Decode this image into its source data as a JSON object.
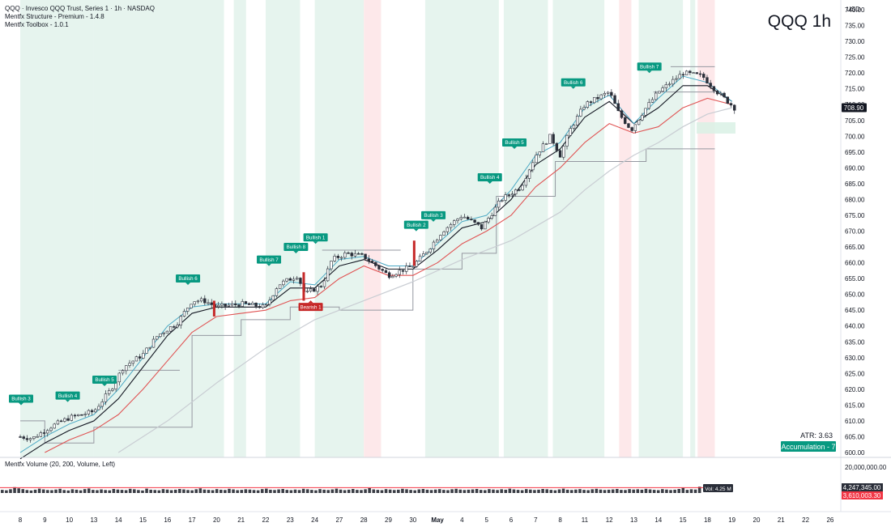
{
  "header": {
    "title_line": "QQQ · Invesco QQQ Trust, Series 1 · 1h · NASDAQ",
    "indicator_1": "Mentfx Structure - Premium - 1.4.8",
    "indicator_2": "Mentfx Toolbox - 1.0.1",
    "watermark": "QQQ 1h"
  },
  "price_axis": {
    "currency": "USD",
    "ticks": [
      "740.00",
      "735.00",
      "730.00",
      "725.00",
      "720.00",
      "715.00",
      "710.00",
      "705.00",
      "700.00",
      "695.00",
      "690.00",
      "685.00",
      "680.00",
      "675.00",
      "670.00",
      "665.00",
      "660.00",
      "655.00",
      "650.00",
      "645.00",
      "640.00",
      "635.00",
      "630.00",
      "625.00",
      "620.00",
      "615.00",
      "610.00",
      "605.00",
      "600.00"
    ],
    "last_price": "708.90",
    "last_price_color": "#131722"
  },
  "status": {
    "atr": "ATR: 3.63",
    "accumulation": "Accumulation - 7",
    "accumulation_color": "#089981"
  },
  "volume_panel": {
    "title": "Mentfx Volume (20, 200, Volume, Left)",
    "axis_top": "20,000,000.00",
    "last_volume": "4,247,345.00",
    "volume_ma": "3,610,003.30",
    "vol_readout": "Vol: 4.25 M",
    "ma_color": "#f23645"
  },
  "time_axis": {
    "labels": [
      "8",
      "9",
      "10",
      "13",
      "14",
      "15",
      "16",
      "17",
      "20",
      "21",
      "22",
      "23",
      "24",
      "27",
      "28",
      "29",
      "30",
      "May",
      "4",
      "5",
      "6",
      "7",
      "8",
      "11",
      "12",
      "13",
      "14",
      "15",
      "18",
      "19",
      "20",
      "21",
      "22",
      "26"
    ]
  },
  "colors": {
    "bull_zone": "#e6f4ee",
    "bear_zone": "#fde8ea",
    "bullish_label": "#089981",
    "bearish_label": "#c62828",
    "candle_up_fill": "#ffffff",
    "candle_down_fill": "#2a2e39",
    "ema_fast": "#4aa8c4",
    "ema_mid": "#131722",
    "ema_slow": "#e05353",
    "sma_long": "#c9cdd3",
    "structure": "#9598a1"
  },
  "chart_data": {
    "type": "candlestick",
    "title": "QQQ 1h",
    "ylabel": "USD",
    "ylim": [
      600,
      740
    ],
    "x_categories": [
      "8",
      "9",
      "10",
      "13",
      "14",
      "15",
      "16",
      "17",
      "20",
      "21",
      "22",
      "23",
      "24",
      "27",
      "28",
      "29",
      "30",
      "May",
      "4",
      "5",
      "6",
      "7",
      "8",
      "11",
      "12",
      "13",
      "14",
      "15",
      "18",
      "19",
      "20",
      "21",
      "22",
      "26"
    ],
    "close_path": [
      [
        0,
        605
      ],
      [
        0.5,
        604.5
      ],
      [
        1.2,
        608
      ],
      [
        2,
        611
      ],
      [
        3,
        613
      ],
      [
        3.7,
        620
      ],
      [
        4.2,
        627
      ],
      [
        5,
        631
      ],
      [
        5.6,
        637
      ],
      [
        6.4,
        641
      ],
      [
        7,
        648
      ],
      [
        7.5,
        648
      ],
      [
        8,
        646
      ],
      [
        9,
        647
      ],
      [
        10,
        646
      ],
      [
        10.5,
        653
      ],
      [
        11.3,
        656
      ],
      [
        11.6,
        650
      ],
      [
        12.3,
        653
      ],
      [
        12.7,
        661
      ],
      [
        13.3,
        663
      ],
      [
        14,
        662
      ],
      [
        15,
        656
      ],
      [
        16,
        659
      ],
      [
        16.6,
        664
      ],
      [
        17.2,
        670
      ],
      [
        18,
        675
      ],
      [
        18.8,
        671
      ],
      [
        19.6,
        680
      ],
      [
        20.4,
        684
      ],
      [
        21,
        694
      ],
      [
        21.6,
        700
      ],
      [
        22,
        694
      ],
      [
        22.4,
        702
      ],
      [
        23,
        710
      ],
      [
        24,
        714
      ],
      [
        24.4,
        707
      ],
      [
        24.9,
        702
      ],
      [
        25.4,
        708
      ],
      [
        26,
        714
      ],
      [
        27,
        720
      ],
      [
        27.8,
        719
      ],
      [
        28.4,
        714
      ],
      [
        29.1,
        709
      ]
    ],
    "ema_fast_path": [
      [
        0,
        600
      ],
      [
        1,
        605
      ],
      [
        2,
        609
      ],
      [
        3,
        612
      ],
      [
        4,
        620
      ],
      [
        5,
        630
      ],
      [
        6,
        640
      ],
      [
        7,
        646
      ],
      [
        8,
        647
      ],
      [
        9,
        647
      ],
      [
        10,
        647
      ],
      [
        11,
        654
      ],
      [
        12,
        653
      ],
      [
        13,
        661
      ],
      [
        14,
        662
      ],
      [
        15,
        659
      ],
      [
        16,
        659
      ],
      [
        17,
        666
      ],
      [
        18,
        673
      ],
      [
        19,
        675
      ],
      [
        20,
        683
      ],
      [
        21,
        694
      ],
      [
        22,
        698
      ],
      [
        23,
        709
      ],
      [
        24,
        713
      ],
      [
        25,
        704
      ],
      [
        26,
        712
      ],
      [
        27,
        719
      ],
      [
        28,
        717
      ],
      [
        29,
        711
      ]
    ],
    "ema_mid_path": [
      [
        0,
        598
      ],
      [
        1,
        603
      ],
      [
        2,
        607
      ],
      [
        3,
        610
      ],
      [
        4,
        617
      ],
      [
        5,
        627
      ],
      [
        6,
        637
      ],
      [
        7,
        644
      ],
      [
        8,
        646
      ],
      [
        9,
        646
      ],
      [
        10,
        646
      ],
      [
        11,
        652
      ],
      [
        12,
        652
      ],
      [
        13,
        659
      ],
      [
        14,
        661
      ],
      [
        15,
        658
      ],
      [
        16,
        658
      ],
      [
        17,
        664
      ],
      [
        18,
        671
      ],
      [
        19,
        673
      ],
      [
        20,
        680
      ],
      [
        21,
        691
      ],
      [
        22,
        696
      ],
      [
        23,
        706
      ],
      [
        24,
        711
      ],
      [
        25,
        704
      ],
      [
        26,
        709
      ],
      [
        27,
        716
      ],
      [
        28,
        716
      ],
      [
        29,
        711
      ]
    ],
    "ema_slow_path": [
      [
        1,
        600
      ],
      [
        2,
        604
      ],
      [
        3,
        607
      ],
      [
        4,
        612
      ],
      [
        5,
        620
      ],
      [
        6,
        629
      ],
      [
        7,
        638
      ],
      [
        8,
        643
      ],
      [
        9,
        644
      ],
      [
        10,
        645
      ],
      [
        11,
        648
      ],
      [
        12,
        649
      ],
      [
        13,
        655
      ],
      [
        14,
        659
      ],
      [
        15,
        656
      ],
      [
        16,
        656
      ],
      [
        17,
        660
      ],
      [
        18,
        666
      ],
      [
        19,
        670
      ],
      [
        20,
        675
      ],
      [
        21,
        684
      ],
      [
        22,
        690
      ],
      [
        23,
        698
      ],
      [
        24,
        704
      ],
      [
        25,
        701
      ],
      [
        26,
        703
      ],
      [
        27,
        709
      ],
      [
        28,
        712
      ],
      [
        29,
        710
      ]
    ],
    "sma_long_path": [
      [
        4,
        600
      ],
      [
        6,
        610
      ],
      [
        8,
        622
      ],
      [
        10,
        633
      ],
      [
        12,
        642
      ],
      [
        14,
        648
      ],
      [
        16,
        654
      ],
      [
        18,
        661
      ],
      [
        20,
        667
      ],
      [
        22,
        676
      ],
      [
        23,
        683
      ],
      [
        24,
        689
      ],
      [
        25,
        694
      ],
      [
        26,
        698
      ],
      [
        27,
        703
      ],
      [
        28,
        707
      ],
      [
        29,
        709
      ]
    ],
    "bull_zones": [
      [
        0,
        3
      ],
      [
        3,
        8.3
      ],
      [
        8.7,
        9.2
      ],
      [
        10,
        11.4
      ],
      [
        12,
        14
      ],
      [
        16.5,
        19.5
      ],
      [
        19.7,
        21.5
      ],
      [
        21.7,
        23.8
      ],
      [
        25.2,
        27
      ],
      [
        27.3,
        27.5
      ]
    ],
    "bear_zones": [
      [
        14,
        14.7
      ],
      [
        24.4,
        24.9
      ],
      [
        27.6,
        28.3
      ]
    ],
    "structure_steps": [
      [
        0,
        610
      ],
      [
        1,
        610
      ],
      [
        1,
        603
      ],
      [
        3,
        603
      ],
      [
        3,
        608
      ],
      [
        7,
        608
      ],
      [
        7,
        637
      ],
      [
        9,
        637
      ],
      [
        9,
        642
      ],
      [
        11,
        642
      ],
      [
        11,
        646
      ],
      [
        13,
        646
      ],
      [
        13,
        645
      ],
      [
        16,
        645
      ],
      [
        16,
        658
      ],
      [
        18,
        658
      ],
      [
        18,
        663
      ],
      [
        19.4,
        663
      ],
      [
        19.4,
        681
      ],
      [
        21.8,
        681
      ],
      [
        21.8,
        692
      ],
      [
        24.3,
        692
      ],
      [
        24.3,
        692
      ],
      [
        25.5,
        692
      ],
      [
        25.5,
        696
      ],
      [
        28.3,
        696
      ]
    ],
    "supply_lines": [
      [
        [
          4,
          626
        ],
        [
          6.5,
          626
        ]
      ],
      [
        [
          12.3,
          664
        ],
        [
          15.5,
          664
        ]
      ],
      [
        [
          26.5,
          722
        ],
        [
          28.3,
          722
        ]
      ],
      [
        [
          25.8,
          714
        ],
        [
          28.3,
          714
        ]
      ]
    ],
    "annotations": [
      {
        "text": "Bullish 3",
        "x": 0,
        "y": 616,
        "type": "bullish"
      },
      {
        "text": "Bullish 4",
        "x": 1.9,
        "y": 617,
        "type": "bullish"
      },
      {
        "text": "Bullish 5",
        "x": 3.4,
        "y": 622,
        "type": "bullish"
      },
      {
        "text": "Bullish 6",
        "x": 6.8,
        "y": 654,
        "type": "bullish"
      },
      {
        "text": "Bullish 7",
        "x": 10.1,
        "y": 660,
        "type": "bullish"
      },
      {
        "text": "Bullish 8",
        "x": 11.2,
        "y": 664,
        "type": "bullish"
      },
      {
        "text": "Bullish 1",
        "x": 12,
        "y": 667,
        "type": "bullish"
      },
      {
        "text": "Bullish 2",
        "x": 16.1,
        "y": 671,
        "type": "bullish"
      },
      {
        "text": "Bullish 3",
        "x": 16.8,
        "y": 674,
        "type": "bullish"
      },
      {
        "text": "Bullish 4",
        "x": 19.1,
        "y": 686,
        "type": "bullish"
      },
      {
        "text": "Bullish 5",
        "x": 20.1,
        "y": 697,
        "type": "bullish"
      },
      {
        "text": "Bullish 6",
        "x": 22.5,
        "y": 716,
        "type": "bullish"
      },
      {
        "text": "Bullish 7",
        "x": 25.6,
        "y": 721,
        "type": "bullish"
      },
      {
        "text": "Bearish 1",
        "x": 11.8,
        "y": 645,
        "type": "bearish"
      }
    ],
    "volume_ylim": [
      0,
      20000000
    ],
    "volume_values": [
      2.1,
      1.8,
      2.5,
      3.9,
      3.1,
      2.6,
      2.0,
      1.7,
      2.2,
      2.9,
      2.4,
      2.0,
      1.9,
      2.3,
      2.8,
      2.0,
      1.7,
      2.5,
      2.2,
      1.8,
      2.6,
      3.0,
      2.1,
      1.9,
      2.4,
      2.0,
      1.8,
      2.7,
      2.3,
      2.1,
      1.9,
      2.8,
      2.5,
      2.0,
      1.7,
      2.9,
      2.2,
      2.0,
      1.8,
      2.6,
      2.3,
      1.9,
      2.2,
      2.7,
      2.4,
      2.0,
      1.8,
      2.5,
      3.1,
      2.3,
      2.1,
      1.9,
      2.6,
      2.2,
      2.0,
      2.8,
      2.4,
      1.9,
      2.1,
      2.5,
      2.3,
      2.0,
      1.8,
      2.6,
      2.9,
      2.2,
      2.0,
      2.4,
      2.7,
      2.1,
      1.9,
      2.3,
      2.0,
      2.8,
      2.5,
      2.1,
      1.8,
      2.6,
      2.2,
      2.0,
      2.4,
      2.9,
      2.3,
      1.9,
      2.2,
      2.7,
      2.1,
      2.0,
      2.5,
      3.3,
      2.4,
      2.1,
      1.9,
      2.6,
      2.3,
      2.0,
      2.2,
      2.8,
      2.5,
      2.1,
      1.8,
      2.4,
      2.7,
      2.2,
      2.0,
      2.3,
      2.6,
      2.1,
      1.9,
      2.5,
      2.8,
      2.3,
      2.0,
      2.2,
      2.4,
      2.7,
      2.1,
      1.9,
      2.6,
      2.3,
      2.0,
      2.5,
      2.2,
      2.9,
      2.4,
      2.1,
      1.9,
      2.6,
      2.3,
      2.0,
      2.2,
      2.7,
      2.5,
      2.1,
      1.8,
      2.4,
      2.9,
      2.2,
      2.0,
      2.3,
      2.6,
      2.1,
      1.9,
      2.5,
      2.8,
      2.3,
      2.0,
      2.2,
      2.4,
      2.7,
      2.1,
      2.0,
      2.6,
      2.3,
      2.5,
      2.2,
      2.8,
      2.4,
      2.1,
      1.9,
      2.6,
      2.3,
      2.0,
      2.2,
      2.7,
      3.4,
      2.1,
      2.5,
      2.3,
      4.2
    ],
    "volume_ma_level": 3610003.3
  }
}
